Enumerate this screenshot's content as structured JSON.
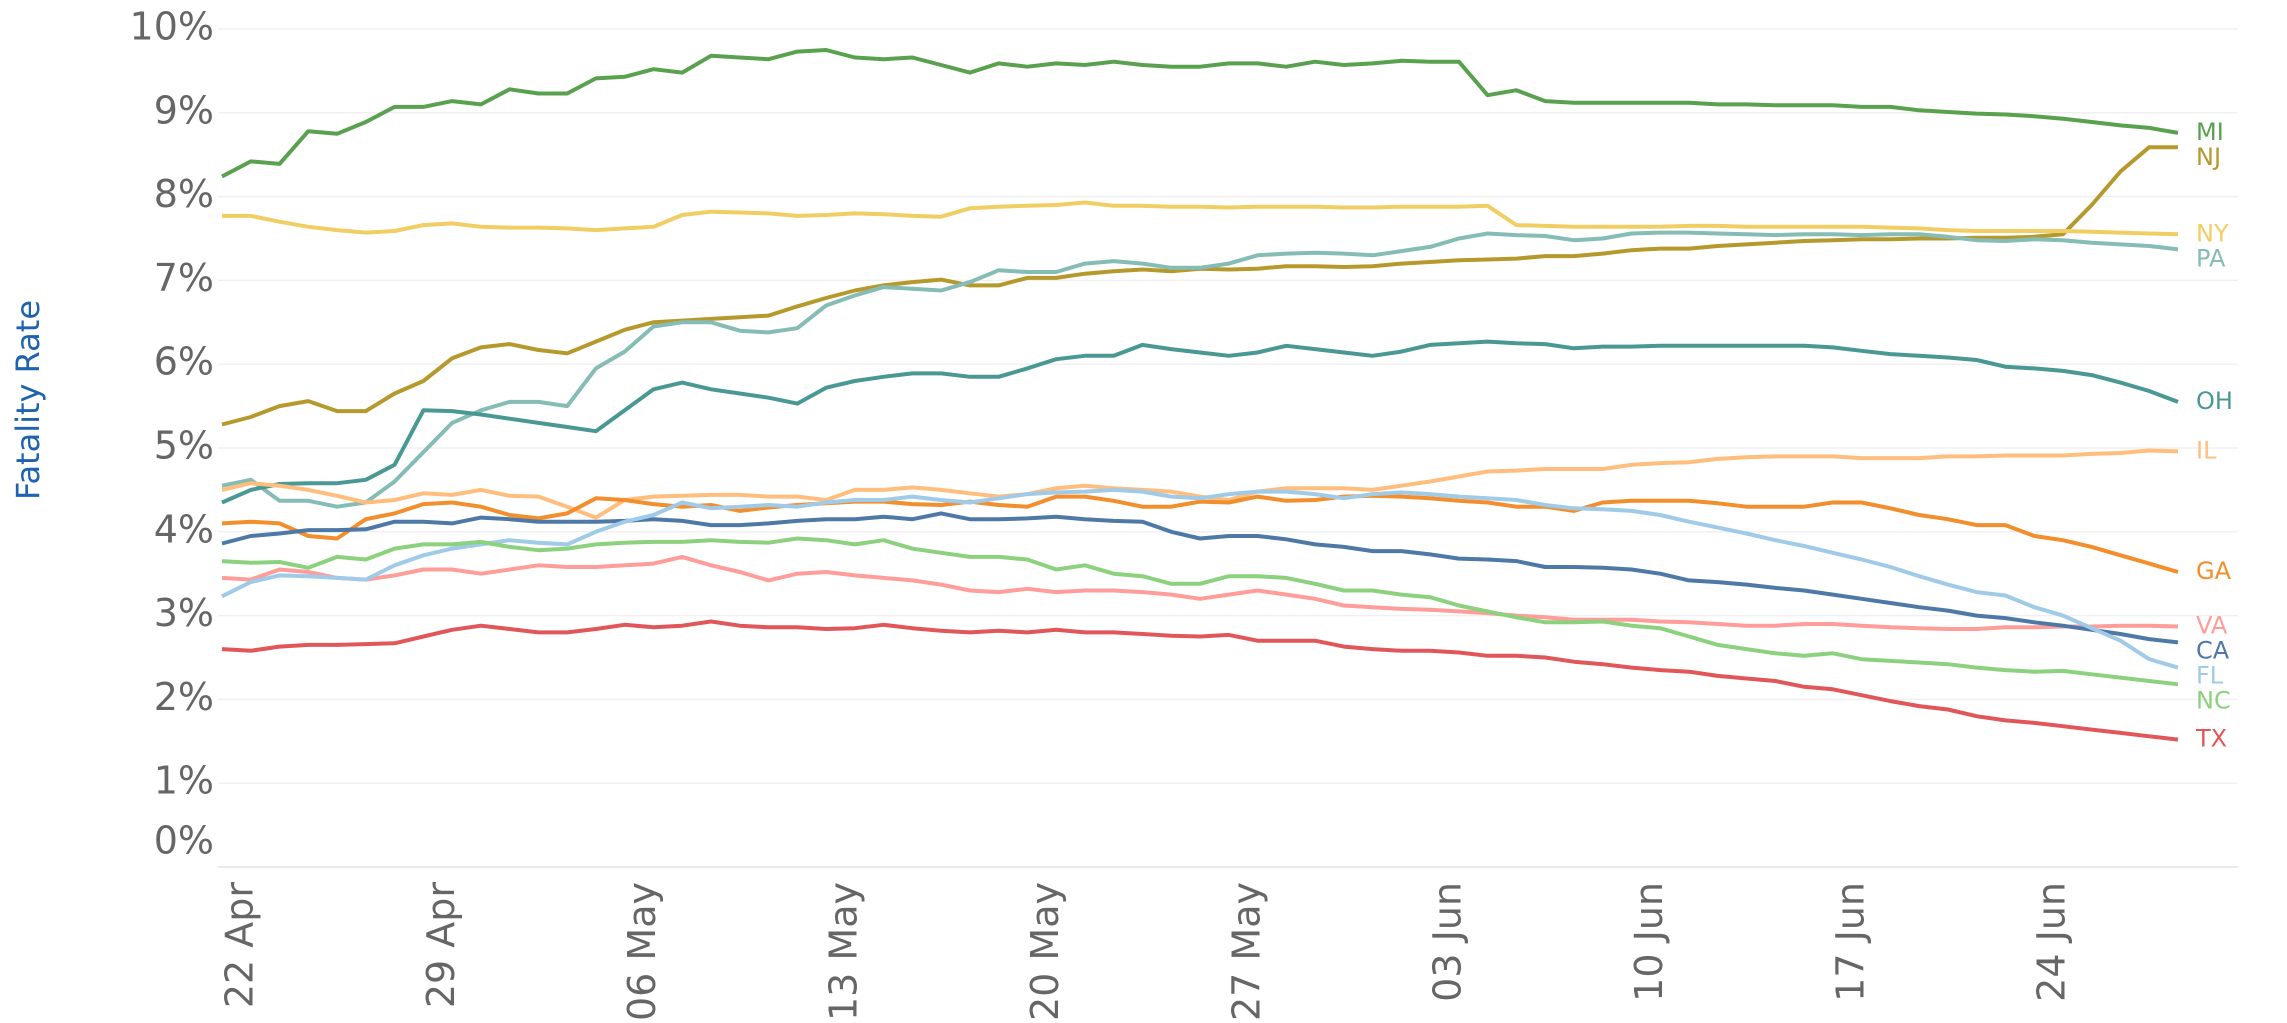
{
  "chart_data": {
    "type": "line",
    "y_label": "Fatality Rate",
    "categories": [
      "22 Apr",
      null,
      null,
      null,
      null,
      null,
      null,
      "29 Apr",
      null,
      null,
      null,
      null,
      null,
      null,
      "06 May",
      null,
      null,
      null,
      null,
      null,
      null,
      "13 May",
      null,
      null,
      null,
      null,
      null,
      null,
      "20 May",
      null,
      null,
      null,
      null,
      null,
      null,
      "27 May",
      null,
      null,
      null,
      null,
      null,
      null,
      "03 Jun",
      null,
      null,
      null,
      null,
      null,
      null,
      "10 Jun",
      null,
      null,
      null,
      null,
      null,
      null,
      "17 Jun",
      null,
      null,
      null,
      null,
      null,
      null,
      "24 Jun",
      null,
      null,
      null,
      null,
      null
    ],
    "ylim": [
      0,
      10
    ],
    "yticks": [
      {
        "value": 0,
        "label": "0%"
      },
      {
        "value": 1,
        "label": "1%"
      },
      {
        "value": 2,
        "label": "2%"
      },
      {
        "value": 3,
        "label": "3%"
      },
      {
        "value": 4,
        "label": "4%"
      },
      {
        "value": 5,
        "label": "5%"
      },
      {
        "value": 6,
        "label": "6%"
      },
      {
        "value": 7,
        "label": "7%"
      },
      {
        "value": 8,
        "label": "8%"
      },
      {
        "value": 9,
        "label": "9%"
      },
      {
        "value": 10,
        "label": "10%"
      }
    ],
    "grid": true,
    "series": [
      {
        "name": "MI",
        "color": "#59a14f",
        "values": [
          8.24,
          8.42,
          8.39,
          8.78,
          8.75,
          8.89,
          9.07,
          9.07,
          9.14,
          9.1,
          9.28,
          9.23,
          9.23,
          9.41,
          9.43,
          9.52,
          9.48,
          9.68,
          9.66,
          9.64,
          9.73,
          9.75,
          9.66,
          9.64,
          9.66,
          9.57,
          9.48,
          9.59,
          9.55,
          9.59,
          9.57,
          9.61,
          9.57,
          9.55,
          9.55,
          9.59,
          9.59,
          9.55,
          9.61,
          9.57,
          9.59,
          9.62,
          9.61,
          9.61,
          9.21,
          9.27,
          9.14,
          9.12,
          9.12,
          9.12,
          9.12,
          9.12,
          9.1,
          9.1,
          9.09,
          9.09,
          9.09,
          9.07,
          9.07,
          9.03,
          9.01,
          8.99,
          8.98,
          8.96,
          8.93,
          8.89,
          8.85,
          8.82,
          8.76
        ]
      },
      {
        "name": "NJ",
        "color": "#b6992d",
        "values": [
          5.28,
          5.37,
          5.5,
          5.56,
          5.44,
          5.44,
          5.65,
          5.8,
          6.07,
          6.2,
          6.24,
          6.17,
          6.13,
          6.27,
          6.41,
          6.5,
          6.52,
          6.54,
          6.56,
          6.58,
          6.69,
          6.79,
          6.88,
          6.94,
          6.98,
          7.01,
          6.94,
          6.94,
          7.03,
          7.03,
          7.08,
          7.11,
          7.13,
          7.11,
          7.14,
          7.13,
          7.14,
          7.17,
          7.17,
          7.16,
          7.17,
          7.2,
          7.22,
          7.24,
          7.25,
          7.26,
          7.29,
          7.29,
          7.32,
          7.36,
          7.38,
          7.38,
          7.41,
          7.43,
          7.45,
          7.47,
          7.48,
          7.49,
          7.49,
          7.5,
          7.5,
          7.51,
          7.51,
          7.52,
          7.55,
          7.9,
          8.3,
          8.59,
          8.59
        ]
      },
      {
        "name": "NY",
        "color": "#f1ce63",
        "values": [
          7.77,
          7.77,
          7.7,
          7.64,
          7.6,
          7.57,
          7.59,
          7.66,
          7.68,
          7.64,
          7.63,
          7.63,
          7.62,
          7.6,
          7.62,
          7.64,
          7.78,
          7.82,
          7.81,
          7.8,
          7.77,
          7.78,
          7.8,
          7.79,
          7.77,
          7.76,
          7.86,
          7.88,
          7.89,
          7.9,
          7.93,
          7.89,
          7.89,
          7.88,
          7.88,
          7.87,
          7.88,
          7.88,
          7.88,
          7.87,
          7.87,
          7.88,
          7.88,
          7.88,
          7.89,
          7.66,
          7.65,
          7.64,
          7.64,
          7.64,
          7.64,
          7.65,
          7.65,
          7.64,
          7.64,
          7.64,
          7.64,
          7.64,
          7.63,
          7.62,
          7.6,
          7.59,
          7.59,
          7.59,
          7.59,
          7.58,
          7.57,
          7.56,
          7.55
        ]
      },
      {
        "name": "PA",
        "color": "#86bcb6",
        "values": [
          4.55,
          4.62,
          4.37,
          4.37,
          4.3,
          4.35,
          4.6,
          4.95,
          5.3,
          5.45,
          5.55,
          5.55,
          5.5,
          5.95,
          6.15,
          6.45,
          6.5,
          6.5,
          6.4,
          6.38,
          6.43,
          6.7,
          6.82,
          6.92,
          6.9,
          6.88,
          6.98,
          7.12,
          7.1,
          7.1,
          7.2,
          7.23,
          7.2,
          7.15,
          7.15,
          7.2,
          7.3,
          7.32,
          7.33,
          7.32,
          7.3,
          7.35,
          7.4,
          7.5,
          7.56,
          7.54,
          7.53,
          7.48,
          7.5,
          7.56,
          7.57,
          7.57,
          7.56,
          7.55,
          7.54,
          7.55,
          7.55,
          7.54,
          7.55,
          7.55,
          7.52,
          7.48,
          7.47,
          7.49,
          7.48,
          7.45,
          7.43,
          7.41,
          7.37
        ]
      },
      {
        "name": "OH",
        "color": "#499894",
        "values": [
          4.35,
          4.5,
          4.57,
          4.58,
          4.58,
          4.62,
          4.8,
          5.45,
          5.44,
          5.4,
          5.35,
          5.3,
          5.25,
          5.2,
          5.45,
          5.7,
          5.78,
          5.7,
          5.65,
          5.6,
          5.53,
          5.72,
          5.8,
          5.85,
          5.89,
          5.89,
          5.85,
          5.85,
          5.95,
          6.06,
          6.1,
          6.1,
          6.23,
          6.18,
          6.14,
          6.1,
          6.14,
          6.22,
          6.18,
          6.14,
          6.1,
          6.15,
          6.23,
          6.25,
          6.27,
          6.25,
          6.24,
          6.19,
          6.21,
          6.21,
          6.22,
          6.22,
          6.22,
          6.22,
          6.22,
          6.22,
          6.2,
          6.16,
          6.12,
          6.1,
          6.08,
          6.05,
          5.97,
          5.95,
          5.92,
          5.87,
          5.78,
          5.68,
          5.55
        ]
      },
      {
        "name": "IL",
        "color": "#ffbe7d",
        "values": [
          4.5,
          4.58,
          4.55,
          4.5,
          4.43,
          4.35,
          4.38,
          4.46,
          4.44,
          4.5,
          4.43,
          4.42,
          4.3,
          4.17,
          4.38,
          4.42,
          4.43,
          4.44,
          4.44,
          4.42,
          4.42,
          4.38,
          4.5,
          4.5,
          4.53,
          4.5,
          4.46,
          4.42,
          4.45,
          4.52,
          4.55,
          4.52,
          4.5,
          4.48,
          4.42,
          4.38,
          4.48,
          4.52,
          4.52,
          4.52,
          4.5,
          4.55,
          4.6,
          4.66,
          4.72,
          4.73,
          4.75,
          4.75,
          4.75,
          4.8,
          4.82,
          4.83,
          4.87,
          4.89,
          4.9,
          4.9,
          4.9,
          4.88,
          4.88,
          4.88,
          4.9,
          4.9,
          4.91,
          4.91,
          4.91,
          4.93,
          4.94,
          4.97,
          4.96
        ]
      },
      {
        "name": "GA",
        "color": "#f28e2b",
        "values": [
          4.1,
          4.12,
          4.1,
          3.95,
          3.92,
          4.15,
          4.22,
          4.33,
          4.35,
          4.3,
          4.2,
          4.16,
          4.22,
          4.4,
          4.38,
          4.33,
          4.3,
          4.32,
          4.25,
          4.29,
          4.32,
          4.34,
          4.36,
          4.36,
          4.33,
          4.32,
          4.36,
          4.32,
          4.3,
          4.42,
          4.42,
          4.37,
          4.3,
          4.3,
          4.36,
          4.35,
          4.42,
          4.37,
          4.38,
          4.42,
          4.43,
          4.42,
          4.4,
          4.37,
          4.35,
          4.3,
          4.3,
          4.25,
          4.35,
          4.37,
          4.37,
          4.37,
          4.34,
          4.3,
          4.3,
          4.3,
          4.35,
          4.35,
          4.28,
          4.2,
          4.15,
          4.08,
          4.08,
          3.95,
          3.9,
          3.82,
          3.72,
          3.62,
          3.52
        ]
      },
      {
        "name": "VA",
        "color": "#ff9d9a",
        "values": [
          3.45,
          3.43,
          3.55,
          3.52,
          3.45,
          3.43,
          3.48,
          3.55,
          3.55,
          3.5,
          3.55,
          3.6,
          3.58,
          3.58,
          3.6,
          3.62,
          3.7,
          3.6,
          3.52,
          3.42,
          3.5,
          3.52,
          3.48,
          3.45,
          3.42,
          3.37,
          3.3,
          3.28,
          3.32,
          3.28,
          3.3,
          3.3,
          3.28,
          3.25,
          3.2,
          3.25,
          3.3,
          3.25,
          3.2,
          3.12,
          3.1,
          3.08,
          3.07,
          3.05,
          3.03,
          3.0,
          2.98,
          2.95,
          2.95,
          2.95,
          2.93,
          2.92,
          2.9,
          2.88,
          2.88,
          2.9,
          2.9,
          2.88,
          2.86,
          2.85,
          2.84,
          2.84,
          2.86,
          2.86,
          2.87,
          2.87,
          2.88,
          2.88,
          2.87
        ]
      },
      {
        "name": "CA",
        "color": "#4e79a7",
        "values": [
          3.86,
          3.95,
          3.98,
          4.02,
          4.02,
          4.03,
          4.12,
          4.12,
          4.1,
          4.17,
          4.15,
          4.12,
          4.12,
          4.12,
          4.13,
          4.15,
          4.13,
          4.08,
          4.08,
          4.1,
          4.13,
          4.15,
          4.15,
          4.18,
          4.15,
          4.22,
          4.15,
          4.15,
          4.16,
          4.18,
          4.15,
          4.13,
          4.12,
          4.0,
          3.92,
          3.95,
          3.95,
          3.91,
          3.85,
          3.82,
          3.77,
          3.77,
          3.73,
          3.68,
          3.67,
          3.65,
          3.58,
          3.58,
          3.57,
          3.55,
          3.5,
          3.42,
          3.4,
          3.37,
          3.33,
          3.3,
          3.25,
          3.2,
          3.15,
          3.1,
          3.06,
          3.0,
          2.97,
          2.92,
          2.88,
          2.83,
          2.78,
          2.72,
          2.68
        ]
      },
      {
        "name": "FL",
        "color": "#a0cbe8",
        "values": [
          3.23,
          3.4,
          3.48,
          3.47,
          3.45,
          3.43,
          3.6,
          3.72,
          3.8,
          3.85,
          3.9,
          3.87,
          3.85,
          4.0,
          4.12,
          4.2,
          4.35,
          4.28,
          4.3,
          4.32,
          4.3,
          4.35,
          4.38,
          4.38,
          4.42,
          4.38,
          4.35,
          4.4,
          4.45,
          4.47,
          4.48,
          4.5,
          4.48,
          4.42,
          4.4,
          4.45,
          4.48,
          4.48,
          4.45,
          4.4,
          4.45,
          4.47,
          4.45,
          4.42,
          4.4,
          4.38,
          4.32,
          4.28,
          4.27,
          4.25,
          4.2,
          4.12,
          4.05,
          3.98,
          3.9,
          3.83,
          3.75,
          3.67,
          3.58,
          3.47,
          3.37,
          3.28,
          3.24,
          3.1,
          3.0,
          2.85,
          2.7,
          2.48,
          2.38
        ]
      },
      {
        "name": "NC",
        "color": "#8cd17d",
        "values": [
          3.65,
          3.63,
          3.64,
          3.57,
          3.7,
          3.67,
          3.8,
          3.85,
          3.85,
          3.88,
          3.82,
          3.78,
          3.8,
          3.85,
          3.87,
          3.88,
          3.88,
          3.9,
          3.88,
          3.87,
          3.92,
          3.9,
          3.85,
          3.9,
          3.8,
          3.75,
          3.7,
          3.7,
          3.67,
          3.55,
          3.6,
          3.5,
          3.47,
          3.38,
          3.38,
          3.47,
          3.47,
          3.45,
          3.38,
          3.3,
          3.3,
          3.25,
          3.22,
          3.12,
          3.05,
          2.98,
          2.92,
          2.92,
          2.93,
          2.88,
          2.85,
          2.75,
          2.65,
          2.6,
          2.55,
          2.52,
          2.55,
          2.48,
          2.46,
          2.44,
          2.42,
          2.38,
          2.35,
          2.33,
          2.34,
          2.3,
          2.26,
          2.22,
          2.18
        ]
      },
      {
        "name": "TX",
        "color": "#e15759",
        "values": [
          2.6,
          2.58,
          2.63,
          2.65,
          2.65,
          2.66,
          2.67,
          2.75,
          2.83,
          2.88,
          2.84,
          2.8,
          2.8,
          2.84,
          2.89,
          2.86,
          2.88,
          2.93,
          2.88,
          2.86,
          2.86,
          2.84,
          2.85,
          2.89,
          2.85,
          2.82,
          2.8,
          2.82,
          2.8,
          2.83,
          2.8,
          2.8,
          2.78,
          2.76,
          2.75,
          2.77,
          2.7,
          2.7,
          2.7,
          2.63,
          2.6,
          2.58,
          2.58,
          2.56,
          2.52,
          2.52,
          2.5,
          2.45,
          2.42,
          2.38,
          2.35,
          2.33,
          2.28,
          2.25,
          2.22,
          2.15,
          2.12,
          2.05,
          1.98,
          1.92,
          1.88,
          1.8,
          1.75,
          1.72,
          1.68,
          1.64,
          1.6,
          1.56,
          1.52
        ]
      }
    ]
  }
}
